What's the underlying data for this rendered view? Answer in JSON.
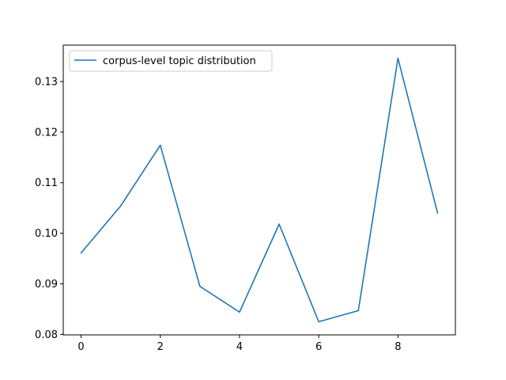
{
  "chart_data": {
    "type": "line",
    "title": "",
    "xlabel": "",
    "ylabel": "",
    "x": [
      0,
      1,
      2,
      3,
      4,
      5,
      6,
      7,
      8,
      9
    ],
    "series": [
      {
        "name": "corpus-level topic distribution",
        "values": [
          0.0961,
          0.1054,
          0.1174,
          0.0895,
          0.0844,
          0.1018,
          0.0825,
          0.0847,
          0.1346,
          0.104
        ],
        "color": "#1f77b4"
      }
    ],
    "xlim": [
      -0.45,
      9.45
    ],
    "ylim": [
      0.0799,
      0.1372
    ],
    "xticks": [
      0,
      2,
      4,
      6,
      8
    ],
    "yticks": [
      0.08,
      0.09,
      0.1,
      0.11,
      0.12,
      0.13
    ],
    "ytick_labels": [
      "0.08",
      "0.09",
      "0.10",
      "0.11",
      "0.12",
      "0.13"
    ],
    "grid": false,
    "legend": "top-left"
  }
}
